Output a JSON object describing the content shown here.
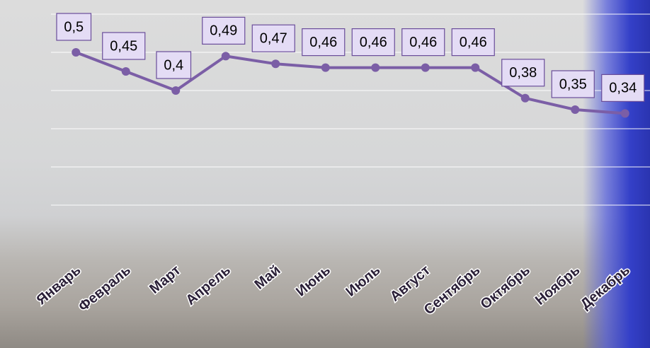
{
  "chart_data": {
    "type": "line",
    "categories": [
      "Январь",
      "Февраль",
      "Март",
      "Апрель",
      "Май",
      "Июнь",
      "Июль",
      "Август",
      "Сентябрь",
      "Октябрь",
      "Ноябрь",
      "Декабрь"
    ],
    "values": [
      0.5,
      0.45,
      0.4,
      0.49,
      0.47,
      0.46,
      0.46,
      0.46,
      0.46,
      0.38,
      0.35,
      0.34
    ],
    "value_labels": [
      "0,5",
      "0,45",
      "0,4",
      "0,49",
      "0,47",
      "0,46",
      "0,46",
      "0,46",
      "0,46",
      "0,38",
      "0,35",
      "0,34"
    ],
    "color": "#7b5ea6",
    "ylim": [
      0,
      0.6
    ],
    "yticks": [
      0.1,
      0.2,
      0.3,
      0.4,
      0.5,
      0.6
    ],
    "grid": true
  }
}
